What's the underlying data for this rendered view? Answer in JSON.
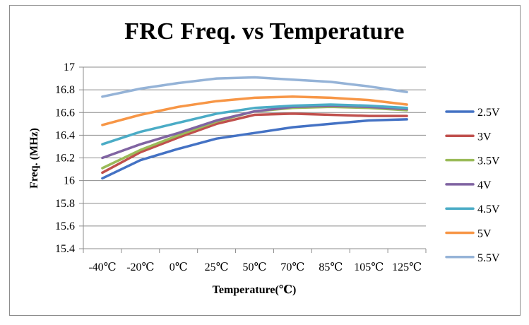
{
  "chart_data": {
    "type": "line",
    "title": "FRC Freq. vs Temperature",
    "xlabel": "Temperature(℃)",
    "ylabel": "Freq. (MHz)",
    "categories": [
      "-40℃",
      "-20℃",
      "0℃",
      "25℃",
      "50℃",
      "70℃",
      "85℃",
      "105℃",
      "125℃"
    ],
    "ylim": [
      15.4,
      17
    ],
    "yticks": [
      15.4,
      15.6,
      15.8,
      16,
      16.2,
      16.4,
      16.6,
      16.8,
      17
    ],
    "ytick_labels": [
      "15.4",
      "15.6",
      "15.8",
      "16",
      "16.2",
      "16.4",
      "16.6",
      "16.8",
      "17"
    ],
    "grid": true,
    "legend_position": "right",
    "series": [
      {
        "name": "2.5V",
        "color": "#4472c4",
        "values": [
          16.02,
          16.18,
          16.28,
          16.37,
          16.42,
          16.47,
          16.5,
          16.53,
          16.54
        ]
      },
      {
        "name": "3V",
        "color": "#c0504d",
        "values": [
          16.07,
          16.25,
          16.38,
          16.5,
          16.58,
          16.59,
          16.58,
          16.57,
          16.57
        ]
      },
      {
        "name": "3.5V",
        "color": "#9bbb59",
        "values": [
          16.11,
          16.27,
          16.4,
          16.52,
          16.61,
          16.64,
          16.65,
          16.64,
          16.62
        ]
      },
      {
        "name": "4V",
        "color": "#8064a2",
        "values": [
          16.2,
          16.32,
          16.42,
          16.53,
          16.61,
          16.65,
          16.66,
          16.65,
          16.63
        ]
      },
      {
        "name": "4.5V",
        "color": "#4bacc6",
        "values": [
          16.32,
          16.43,
          16.51,
          16.59,
          16.64,
          16.66,
          16.67,
          16.66,
          16.64
        ]
      },
      {
        "name": "5V",
        "color": "#f79646",
        "values": [
          16.49,
          16.58,
          16.65,
          16.7,
          16.73,
          16.74,
          16.73,
          16.71,
          16.67
        ]
      },
      {
        "name": "5.5V",
        "color": "#95b3d7",
        "values": [
          16.74,
          16.81,
          16.86,
          16.9,
          16.91,
          16.89,
          16.87,
          16.83,
          16.78
        ]
      }
    ]
  }
}
